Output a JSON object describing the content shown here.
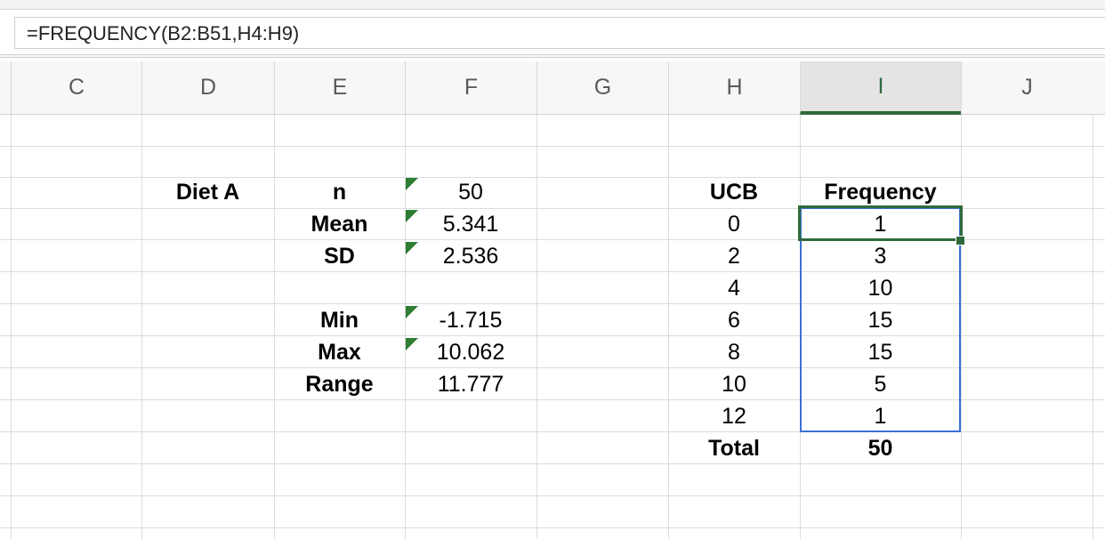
{
  "formula_bar": {
    "formula": "=FREQUENCY(B2:B51,H4:H9)"
  },
  "columns": [
    "C",
    "D",
    "E",
    "F",
    "G",
    "H",
    "I",
    "J"
  ],
  "selected_column": "I",
  "stats": {
    "diet_label": "Diet A",
    "labels": [
      "n",
      "Mean",
      "SD",
      "Min",
      "Max",
      "Range"
    ],
    "values": [
      "50",
      "5.341",
      "2.536",
      "-1.715",
      "10.062",
      "11.777"
    ]
  },
  "frequency_table": {
    "ucb_header": "UCB",
    "freq_header": "Frequency",
    "ucb": [
      "0",
      "2",
      "4",
      "6",
      "8",
      "10",
      "12"
    ],
    "frequency": [
      "1",
      "3",
      "10",
      "15",
      "15",
      "5",
      "1"
    ],
    "total_label": "Total",
    "total_value": "50"
  },
  "colors": {
    "accent_green": "#2e6b3a",
    "selection_blue": "#3b6fd6",
    "error_indicator": "#2e7d32"
  }
}
